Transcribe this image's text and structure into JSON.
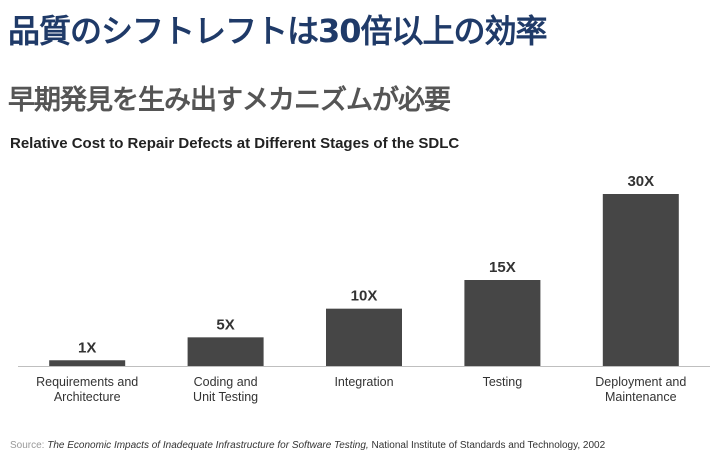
{
  "slide": {
    "title": "品質のシフトレフトは30倍以上の効率",
    "subtitle": "早期発見を生み出すメカニズムが必要"
  },
  "chart_data": {
    "type": "bar",
    "title": "Relative Cost to Repair Defects at Different Stages of the SDLC",
    "categories": [
      [
        "Requirements and",
        "Architecture"
      ],
      [
        "Coding and",
        "Unit Testing"
      ],
      [
        "Integration"
      ],
      [
        "Testing"
      ],
      [
        "Deployment and",
        "Maintenance"
      ]
    ],
    "values": [
      1,
      5,
      10,
      15,
      30
    ],
    "data_labels": [
      "1X",
      "5X",
      "10X",
      "15X",
      "30X"
    ],
    "ylim": [
      0,
      30
    ],
    "grid": false,
    "legend": "none",
    "bar_color": "#464646"
  },
  "source": {
    "label": "Source:",
    "title": "The Economic Impacts of Inadequate Infrastructure for Software Testing,",
    "rest": "National Institute of Standards and Technology, 2002"
  }
}
